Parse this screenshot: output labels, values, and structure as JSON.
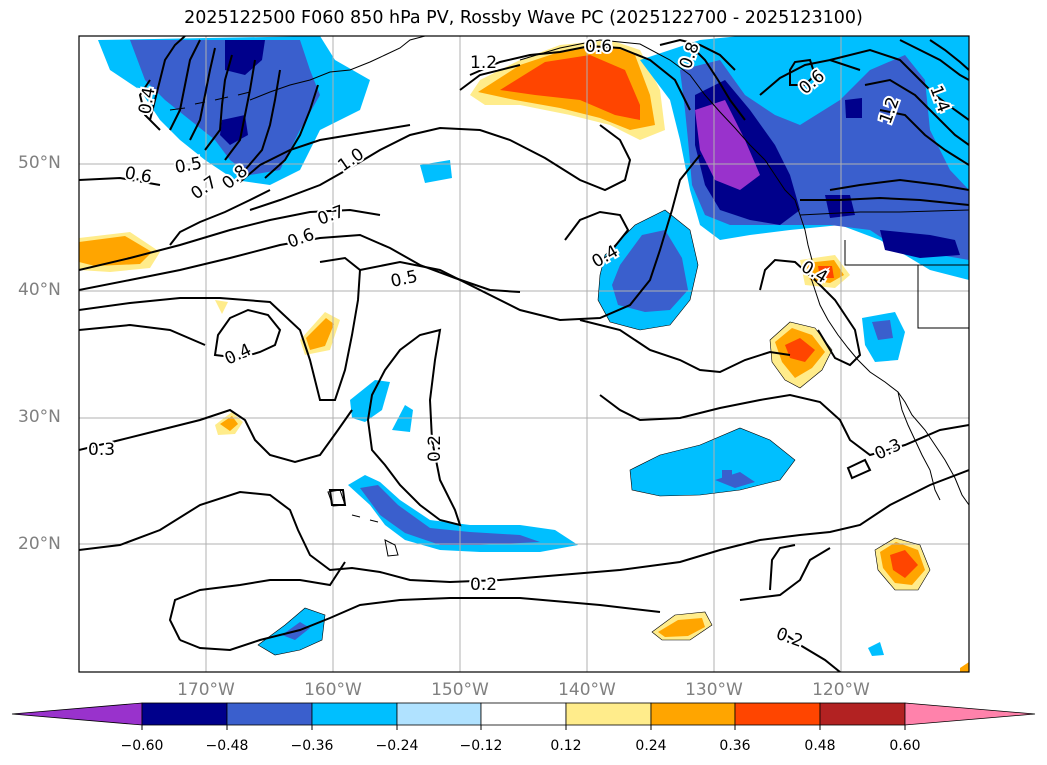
{
  "title": "2025122500 F060 850 hPa PV, Rossby Wave PC (2025122700 - 2025123100)",
  "map": {
    "lat_ticks": [
      "20°N",
      "30°N",
      "40°N",
      "50°N"
    ],
    "lon_ticks": [
      "170°W",
      "160°W",
      "150°W",
      "140°W",
      "130°W",
      "120°W"
    ],
    "contour_labels": [
      "1.2",
      "0.6",
      "0.8",
      "0.6",
      "1.2",
      "1.4",
      "0.4",
      "0.5",
      "0.6",
      "0.7",
      "0.8",
      "1.0",
      "0.7",
      "0.6",
      "0.5",
      "0.4",
      "0.4",
      "0.4",
      "0.3",
      "0.2",
      "0.3",
      "0.2",
      "0.2"
    ]
  },
  "colorbar": {
    "ticks": [
      "−0.60",
      "−0.48",
      "−0.36",
      "−0.24",
      "−0.12",
      "0.12",
      "0.24",
      "0.36",
      "0.48",
      "0.60"
    ],
    "colors": [
      "#9932cc",
      "#00008b",
      "#3a5fcd",
      "#00bfff",
      "#b0e2ff",
      "#ffffff",
      "#ffec8b",
      "#ffa500",
      "#ff4500",
      "#b22222",
      "#ff82ab"
    ]
  },
  "palette": {
    "neg_purple": "#9932cc",
    "neg_navy": "#00008b",
    "neg_blue": "#3a5fcd",
    "neg_sky": "#00bfff",
    "neg_light": "#b0e2ff",
    "pos_yellow": "#ffec8b",
    "pos_orange": "#ffa500",
    "pos_red": "#ff4500"
  }
}
